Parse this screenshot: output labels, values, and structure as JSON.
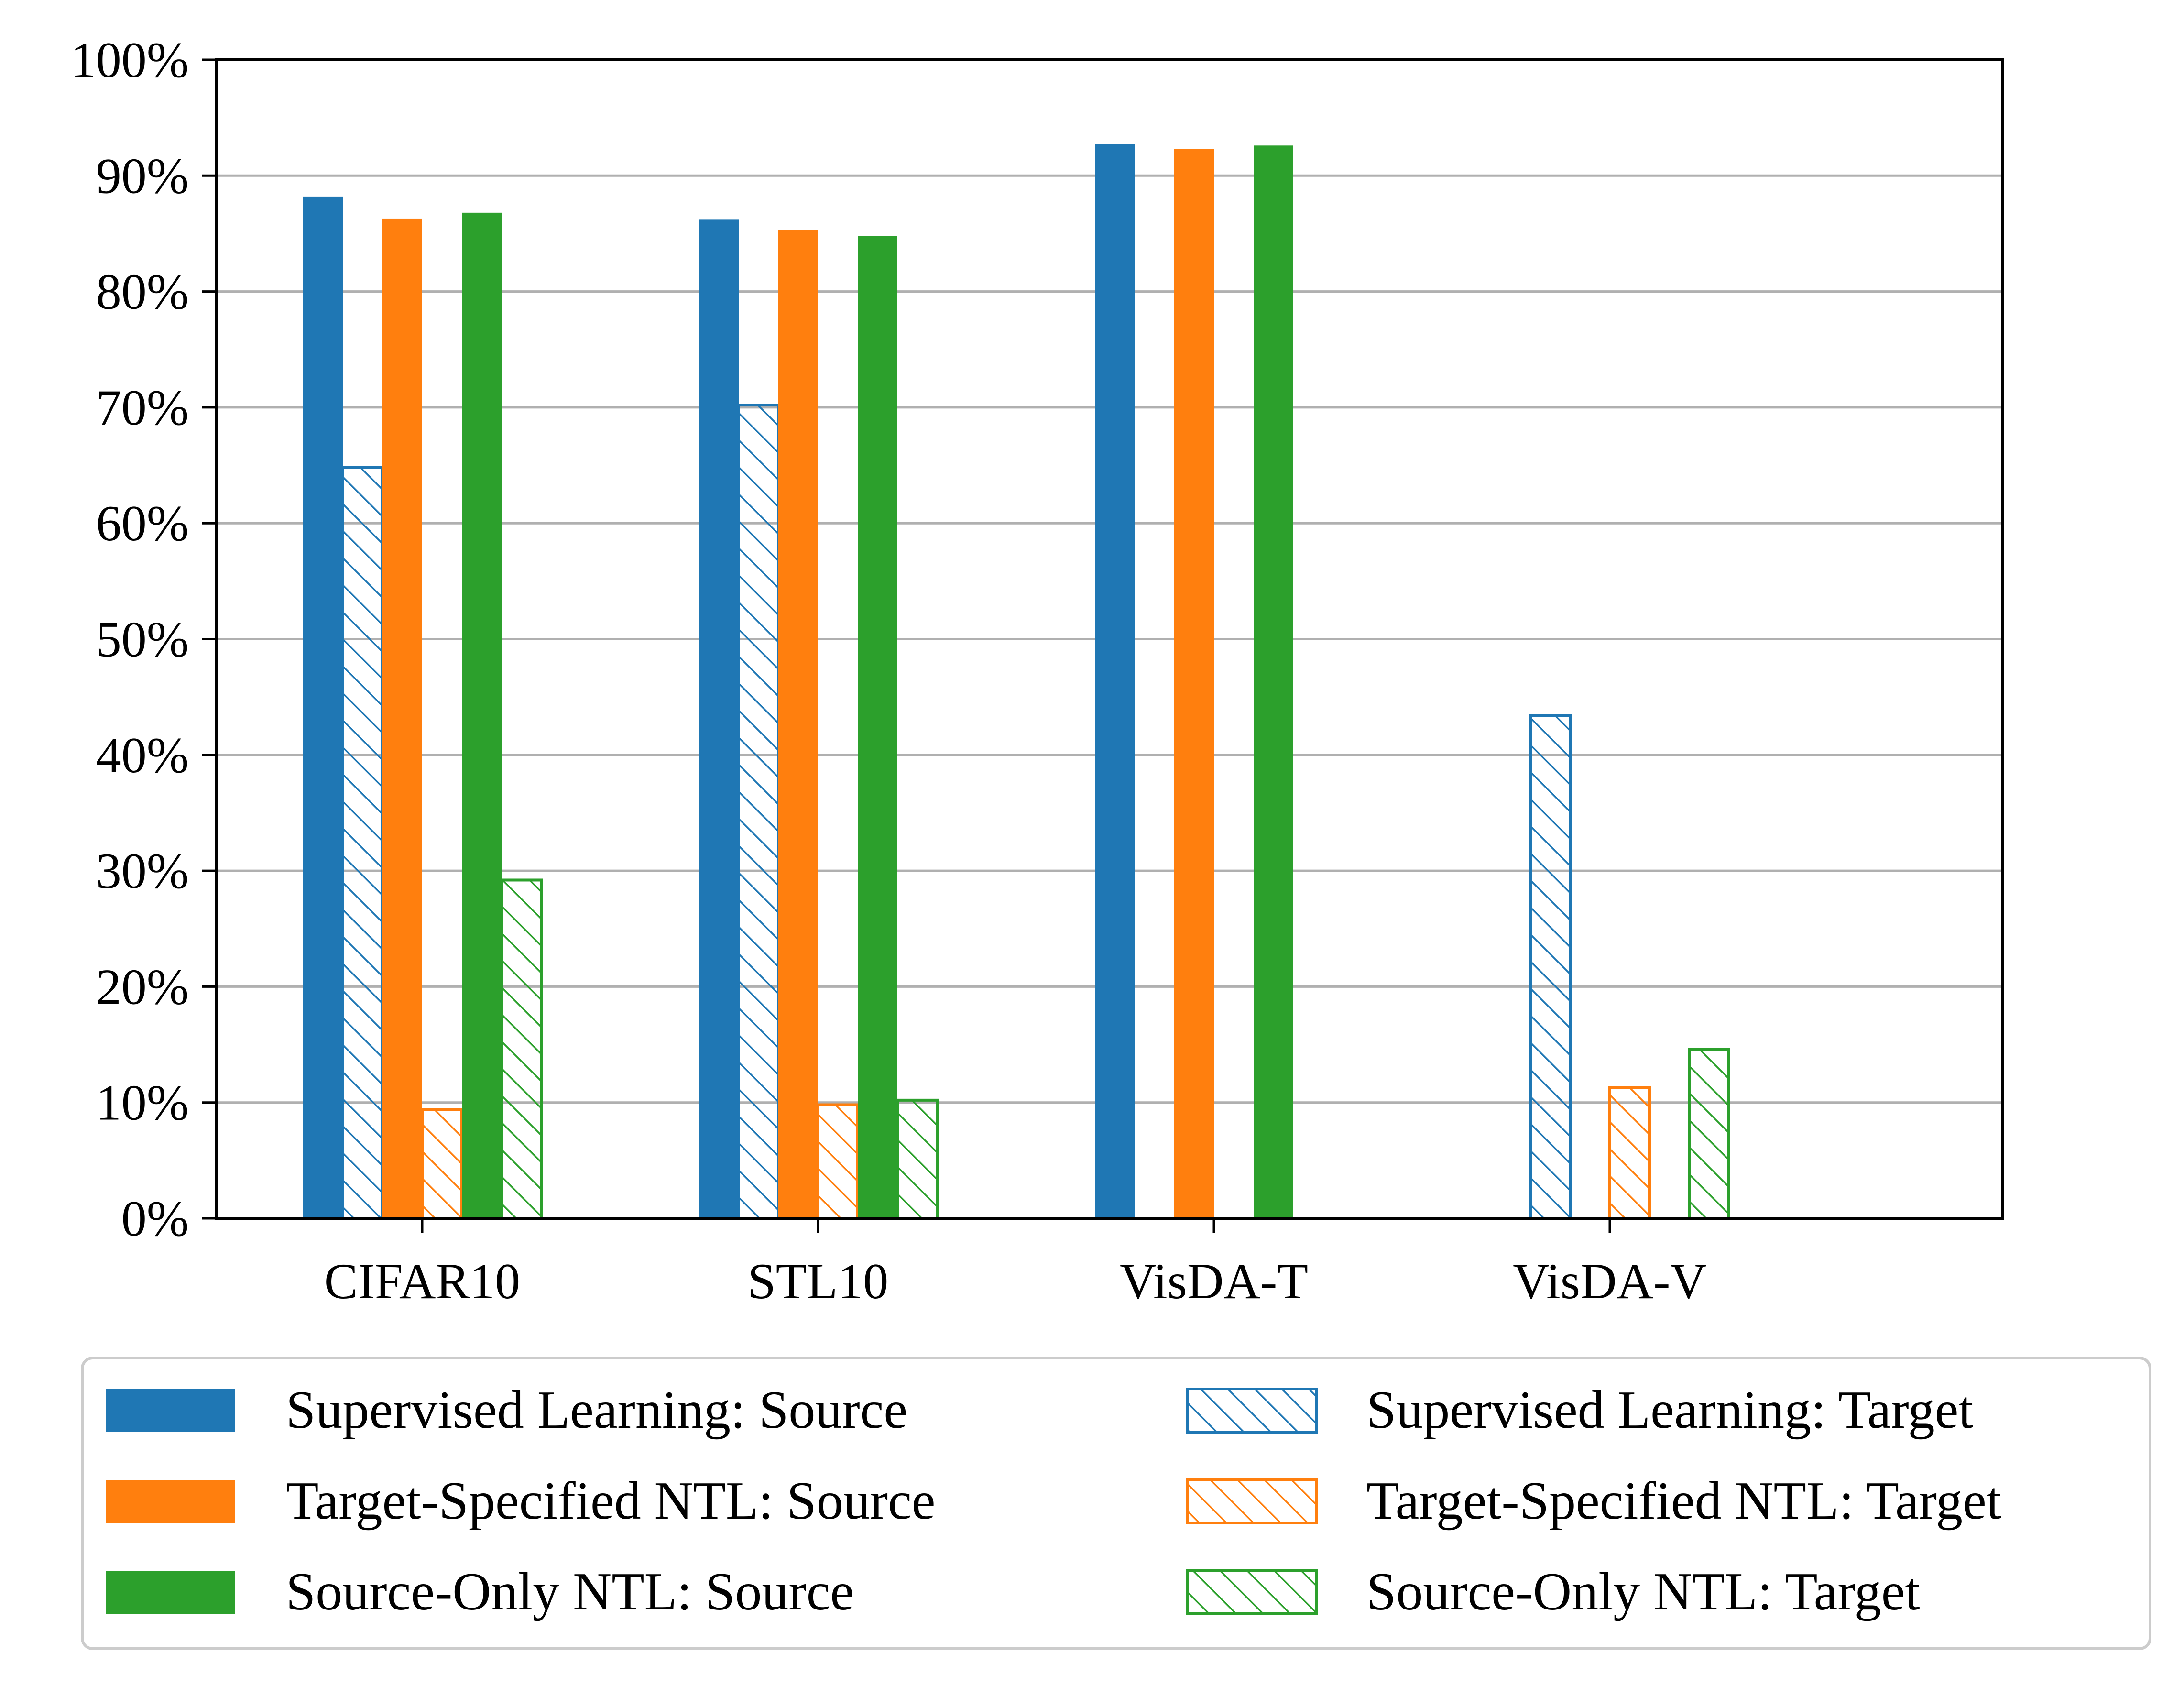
{
  "chart_data": {
    "type": "bar",
    "title": "",
    "xlabel": "",
    "ylabel": "",
    "ylim": [
      0,
      100
    ],
    "yticks": [
      "0%",
      "10%",
      "20%",
      "30%",
      "40%",
      "50%",
      "60%",
      "70%",
      "80%",
      "90%",
      "100%"
    ],
    "categories": [
      "CIFAR10",
      "STL10",
      "VisDA-T",
      "VisDA-V"
    ],
    "grid": "horizontal",
    "legend_position": "bottom",
    "series": [
      {
        "name": "Supervised Learning: Source",
        "color": "#1f77b4",
        "style": "solid",
        "values": [
          88.2,
          86.2,
          92.7,
          null
        ]
      },
      {
        "name": "Supervised Learning: Target",
        "color": "#1f77b4",
        "style": "hatched",
        "values": [
          64.8,
          70.2,
          0.0,
          43.4
        ]
      },
      {
        "name": "Target-Specified NTL: Source",
        "color": "#ff7f0e",
        "style": "solid",
        "values": [
          86.3,
          85.3,
          92.3,
          null
        ]
      },
      {
        "name": "Target-Specified NTL: Target",
        "color": "#ff7f0e",
        "style": "hatched",
        "values": [
          9.4,
          9.8,
          0.0,
          11.3
        ]
      },
      {
        "name": "Source-Only NTL: Source",
        "color": "#2ca02c",
        "style": "solid",
        "values": [
          86.8,
          84.8,
          92.6,
          null
        ]
      },
      {
        "name": "Source-Only NTL: Target",
        "color": "#2ca02c",
        "style": "hatched",
        "values": [
          29.2,
          10.2,
          0.0,
          14.6
        ]
      }
    ]
  }
}
